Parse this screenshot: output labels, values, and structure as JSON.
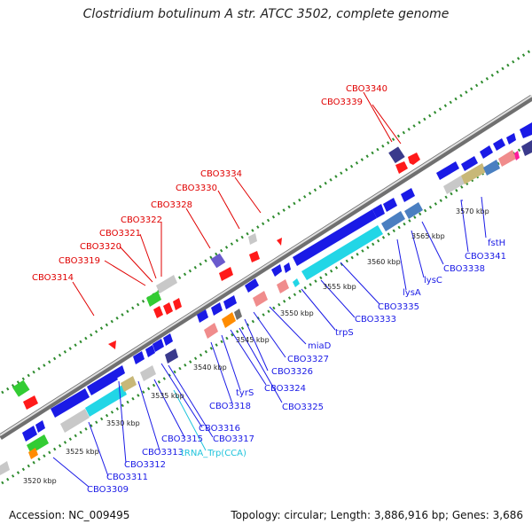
{
  "title": "Clostridium botulinum A str. ATCC 3502, complete genome",
  "footer": {
    "accession": "Accession: NC_009495",
    "topology": "Topology: circular; Length: 3,886,916 bp; Genes: 3,686"
  },
  "scale_labels": [
    "3520 kbp",
    "3525 kbp",
    "3530 kbp",
    "3535 kbp",
    "3540 kbp",
    "3545 kbp",
    "3550 kbp",
    "3555 kbp",
    "3560 kbp",
    "3565 kbp",
    "3570 kbp"
  ],
  "gene_labels_red": [
    "CBO3340",
    "CBO3339",
    "CBO3334",
    "CBO3330",
    "CBO3328",
    "CBO3322",
    "CBO3321",
    "CBO3320",
    "CBO3319",
    "CBO3314"
  ],
  "gene_labels_blue": [
    "fstH",
    "CBO3341",
    "CBO3338",
    "lysC",
    "lysA",
    "CBO3335",
    "CBO3333",
    "trpS",
    "miaD",
    "CBO3327",
    "CBO3326",
    "CBO3324",
    "CBO3325",
    "tyrS",
    "CBO3318",
    "CBO3316",
    "CBO3317",
    "CBO3315",
    "CBO3313",
    "CBO3312",
    "CBO3311",
    "CBO3309"
  ],
  "gene_labels_cyan": [
    "tRNA_Trp(CCA)"
  ],
  "colors": {
    "backbone": "#8c8c8c",
    "tick_green": "#2e8b2e",
    "gene_blue": "#1a1ae6",
    "gene_cyan": "#22d6e6",
    "gene_red": "#ff1a1a",
    "gene_pink": "#f08c8c",
    "gene_grey": "#c8c8c8",
    "gene_purple": "#6a5acd",
    "gene_khaki": "#c8b878",
    "gene_steel": "#4a7fc1",
    "gene_green": "#33cc33",
    "gene_orange": "#ff8c00",
    "label_red": "#e00000",
    "label_blue": "#1a1ae6",
    "label_cyan": "#20c4dc"
  }
}
